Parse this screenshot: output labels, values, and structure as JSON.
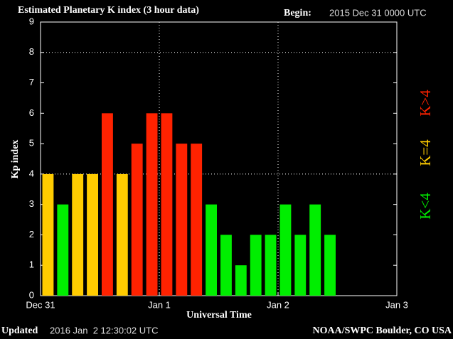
{
  "chart_data": {
    "type": "bar",
    "title": "Estimated Planetary K index (3 hour data)",
    "begin_label": "Begin:",
    "begin_value": "2015 Dec 31 0000 UTC",
    "y_label": "Kp index",
    "x_label": "Universal Time",
    "updated_label": "Updated",
    "updated_value": "2016 Jan  2 12:30:02 UTC",
    "source": "NOAA/SWPC Boulder, CO USA",
    "x": [
      0,
      3,
      6,
      9,
      12,
      15,
      18,
      21,
      24,
      27,
      30,
      33,
      36,
      39,
      42,
      45,
      48,
      51,
      54,
      57
    ],
    "values": [
      4,
      3,
      4,
      4,
      6,
      4,
      5,
      6,
      6,
      5,
      5,
      3,
      2,
      1,
      2,
      2,
      3,
      2,
      3,
      2
    ],
    "colors": [
      "#ffcc00",
      "#00ee00",
      "#ffcc00",
      "#ffcc00",
      "#ff2200",
      "#ffcc00",
      "#ff2200",
      "#ff2200",
      "#ff2200",
      "#ff2200",
      "#ff2200",
      "#00ee00",
      "#00ee00",
      "#00ee00",
      "#00ee00",
      "#00ee00",
      "#00ee00",
      "#00ee00",
      "#00ee00",
      "#00ee00"
    ],
    "legend": [
      {
        "label": "K<4",
        "color": "#00ee00"
      },
      {
        "label": "K=4",
        "color": "#ffcc00"
      },
      {
        "label": "K>4",
        "color": "#ff2200"
      }
    ],
    "xlim": [
      0,
      72
    ],
    "xticks": [
      {
        "value": 0,
        "label": "Dec 31"
      },
      {
        "value": 24,
        "label": "Jan 1"
      },
      {
        "value": 48,
        "label": "Jan 2"
      },
      {
        "value": 72,
        "label": "Jan 3"
      }
    ],
    "xgrid": [
      24,
      48
    ],
    "ylim": [
      0,
      9
    ],
    "yticks": [
      0,
      1,
      2,
      3,
      4,
      5,
      6,
      7,
      8,
      9
    ],
    "ygrid": [
      4,
      8
    ]
  }
}
